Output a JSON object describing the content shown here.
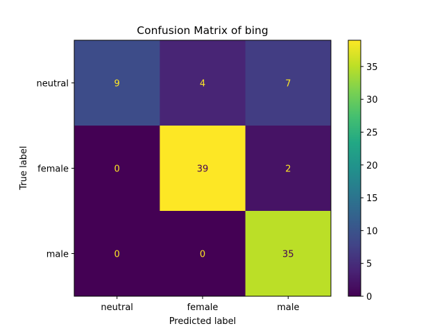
{
  "chart_data": {
    "type": "heatmap",
    "title": "Confusion Matrix of bing",
    "xlabel": "Predicted label",
    "ylabel": "True label",
    "x_categories": [
      "neutral",
      "female",
      "male"
    ],
    "y_categories": [
      "neutral",
      "female",
      "male"
    ],
    "values": [
      [
        9,
        4,
        7
      ],
      [
        0,
        39,
        2
      ],
      [
        0,
        0,
        35
      ]
    ],
    "colormap": "viridis",
    "colorbar": {
      "range": [
        0,
        39
      ],
      "ticks": [
        0,
        5,
        10,
        15,
        20,
        25,
        30,
        35
      ]
    },
    "text_colors": {
      "on_dark": "#fde725",
      "on_light": "#440154"
    }
  }
}
